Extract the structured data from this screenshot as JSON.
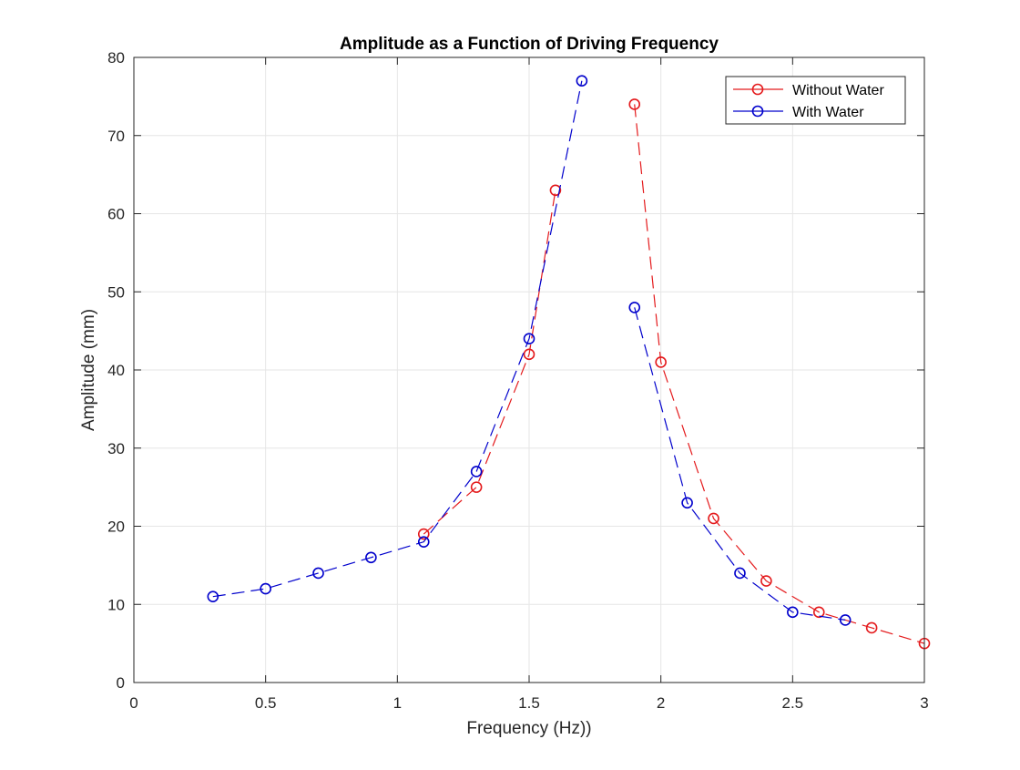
{
  "colors": {
    "background": "#ffffff",
    "grid": "#e6e6e6",
    "axis": "#262626",
    "without_water": "#e41a1c",
    "with_water": "#0000cc"
  },
  "chart_data": {
    "type": "line",
    "title": "Amplitude as a Function of Driving Frequency",
    "xlabel": "Frequency (Hz))",
    "ylabel": "Amplitude (mm)",
    "xlim": [
      0,
      3
    ],
    "ylim": [
      0,
      80
    ],
    "xticks": [
      0,
      0.5,
      1,
      1.5,
      2,
      2.5,
      3
    ],
    "xtick_labels": [
      "0",
      "0.5",
      "1",
      "1.5",
      "2",
      "2.5",
      "3"
    ],
    "yticks": [
      0,
      10,
      20,
      30,
      40,
      50,
      60,
      70,
      80
    ],
    "ytick_labels": [
      "0",
      "10",
      "20",
      "30",
      "40",
      "50",
      "60",
      "70",
      "80"
    ],
    "grid": true,
    "legend_position": "top-right",
    "line_style": "dashed",
    "marker": "circle",
    "series": [
      {
        "name": "Without Water",
        "color": "#e41a1c",
        "segments": [
          [
            [
              1.1,
              19
            ],
            [
              1.3,
              25
            ],
            [
              1.5,
              42
            ],
            [
              1.6,
              63
            ]
          ],
          [
            [
              1.9,
              74
            ],
            [
              2.0,
              41
            ],
            [
              2.2,
              21
            ],
            [
              2.4,
              13
            ],
            [
              2.6,
              9
            ],
            [
              2.8,
              7
            ],
            [
              3.0,
              5
            ]
          ]
        ]
      },
      {
        "name": "With Water",
        "color": "#0000cc",
        "segments": [
          [
            [
              0.3,
              11
            ],
            [
              0.5,
              12
            ],
            [
              0.7,
              14
            ],
            [
              0.9,
              16
            ],
            [
              1.1,
              18
            ],
            [
              1.3,
              27
            ],
            [
              1.5,
              44
            ],
            [
              1.7,
              77
            ]
          ],
          [
            [
              1.9,
              48
            ],
            [
              2.1,
              23
            ],
            [
              2.3,
              14
            ],
            [
              2.5,
              9
            ],
            [
              2.7,
              8
            ]
          ]
        ]
      }
    ]
  }
}
